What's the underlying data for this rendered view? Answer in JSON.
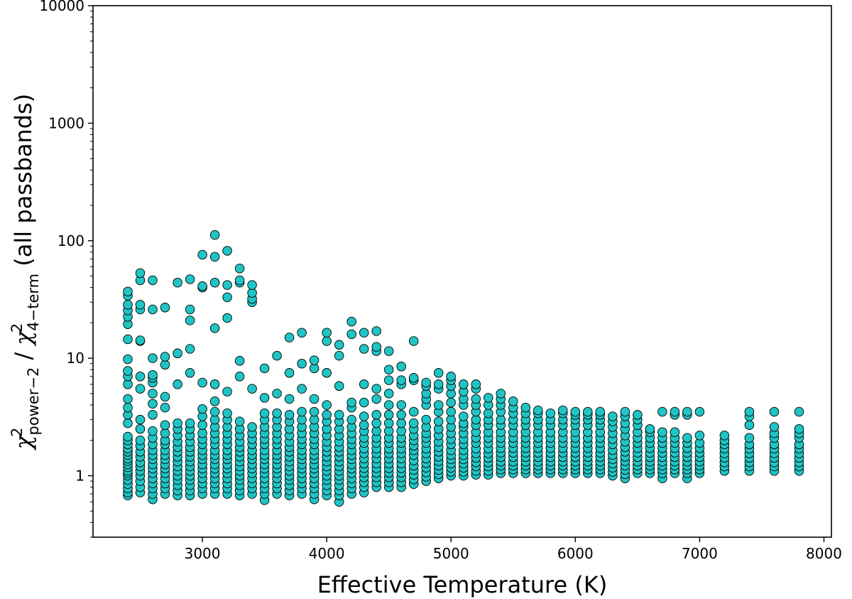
{
  "chart_data": {
    "type": "scatter",
    "title": "",
    "xlabel": "Effective Temperature (K)",
    "ylabel": {
      "symbol": "χ",
      "sup": "2",
      "num_sub": "power−2",
      "separator": " / ",
      "den_sub": "4−term",
      "suffix": " (all passbands)"
    },
    "xlim": [
      2120,
      8060
    ],
    "ylim": [
      0.3,
      10000
    ],
    "yscale": "log",
    "xticks": [
      3000,
      4000,
      5000,
      6000,
      7000,
      8000
    ],
    "xtick_labels": [
      "3000",
      "4000",
      "5000",
      "6000",
      "7000",
      "8000"
    ],
    "yticks": [
      1,
      10,
      100,
      1000,
      10000
    ],
    "ytick_labels": [
      "1",
      "10",
      "100",
      "1000",
      "10000"
    ],
    "marker_color": "#20c4c4",
    "marker_edge": "#000000",
    "series": [
      {
        "x": 2400,
        "y": [
          0.68,
          0.72,
          0.78,
          0.85,
          0.92,
          1.0,
          1.05,
          1.1,
          1.18,
          1.25,
          1.33,
          1.4,
          1.5,
          1.6,
          1.7,
          1.85,
          2.0,
          2.15,
          2.8,
          3.3,
          3.8,
          4.5,
          6.0,
          7.0,
          7.8,
          9.8,
          14.5,
          19.5,
          22.5,
          25.5,
          28.5,
          34.0,
          37.0
        ]
      },
      {
        "x": 2500,
        "y": [
          0.72,
          0.8,
          0.9,
          1.0,
          1.1,
          1.2,
          1.3,
          1.45,
          1.6,
          1.8,
          2.0,
          2.5,
          3.0,
          5.5,
          7.0,
          14.0,
          14.2,
          26.0,
          28.5,
          46.0,
          53.0
        ]
      },
      {
        "x": 2600,
        "y": [
          0.63,
          0.7,
          0.78,
          0.86,
          0.95,
          1.05,
          1.15,
          1.25,
          1.38,
          1.5,
          1.65,
          1.85,
          2.1,
          2.4,
          3.3,
          4.1,
          5.0,
          6.2,
          6.8,
          7.2,
          10.0,
          26.0,
          46.0
        ]
      },
      {
        "x": 2700,
        "y": [
          0.7,
          0.78,
          0.86,
          0.95,
          1.05,
          1.15,
          1.25,
          1.38,
          1.5,
          1.65,
          1.85,
          2.0,
          2.3,
          2.7,
          3.8,
          4.7,
          8.8,
          10.3,
          27.0
        ]
      },
      {
        "x": 2800,
        "y": [
          0.68,
          0.75,
          0.83,
          0.92,
          1.0,
          1.1,
          1.2,
          1.32,
          1.45,
          1.6,
          1.75,
          1.95,
          2.2,
          2.5,
          2.8,
          6.0,
          11.0,
          44.0
        ]
      },
      {
        "x": 2900,
        "y": [
          0.68,
          0.75,
          0.83,
          0.92,
          1.0,
          1.1,
          1.2,
          1.32,
          1.45,
          1.6,
          1.75,
          1.95,
          2.2,
          2.5,
          2.8,
          7.5,
          12.0,
          21.0,
          26.0,
          47.0
        ]
      },
      {
        "x": 3000,
        "y": [
          0.7,
          0.78,
          0.86,
          0.95,
          1.05,
          1.15,
          1.25,
          1.38,
          1.5,
          1.65,
          1.85,
          2.05,
          2.3,
          2.7,
          3.2,
          3.7,
          6.2,
          40.0,
          41.0,
          76.0
        ]
      },
      {
        "x": 3100,
        "y": [
          0.7,
          0.78,
          0.86,
          0.95,
          1.05,
          1.15,
          1.25,
          1.38,
          1.5,
          1.65,
          1.85,
          2.05,
          2.3,
          2.6,
          3.0,
          3.5,
          4.3,
          6.0,
          18.0,
          44.0,
          73.0,
          112.0
        ]
      },
      {
        "x": 3200,
        "y": [
          0.7,
          0.78,
          0.86,
          0.95,
          1.05,
          1.15,
          1.25,
          1.38,
          1.5,
          1.65,
          1.85,
          2.05,
          2.3,
          2.6,
          3.0,
          3.4,
          5.2,
          22.0,
          33.0,
          42.0,
          82.0
        ]
      },
      {
        "x": 3300,
        "y": [
          0.68,
          0.75,
          0.83,
          0.92,
          1.0,
          1.1,
          1.2,
          1.32,
          1.45,
          1.6,
          1.75,
          1.95,
          2.2,
          2.5,
          2.9,
          7.0,
          9.5,
          44.0,
          46.0,
          58.0
        ]
      },
      {
        "x": 3400,
        "y": [
          0.7,
          0.78,
          0.86,
          0.95,
          1.05,
          1.15,
          1.25,
          1.38,
          1.5,
          1.65,
          1.85,
          2.05,
          2.3,
          2.6,
          5.5,
          30.0,
          32.0,
          36.0,
          42.0
        ]
      },
      {
        "x": 3500,
        "y": [
          0.62,
          0.7,
          0.78,
          0.86,
          0.95,
          1.05,
          1.15,
          1.25,
          1.38,
          1.5,
          1.65,
          1.85,
          2.05,
          2.3,
          2.6,
          3.0,
          3.4,
          4.6,
          8.2
        ]
      },
      {
        "x": 3600,
        "y": [
          0.7,
          0.78,
          0.86,
          0.95,
          1.05,
          1.15,
          1.25,
          1.38,
          1.5,
          1.65,
          1.85,
          2.05,
          2.3,
          2.6,
          3.0,
          3.4,
          5.0,
          10.5
        ]
      },
      {
        "x": 3700,
        "y": [
          0.68,
          0.75,
          0.83,
          0.92,
          1.0,
          1.1,
          1.2,
          1.32,
          1.45,
          1.6,
          1.75,
          1.95,
          2.2,
          2.5,
          2.9,
          3.3,
          4.5,
          7.5,
          15.0
        ]
      },
      {
        "x": 3800,
        "y": [
          0.7,
          0.78,
          0.86,
          0.95,
          1.05,
          1.15,
          1.25,
          1.38,
          1.5,
          1.65,
          1.85,
          2.05,
          2.3,
          2.6,
          3.0,
          3.5,
          5.5,
          9.0,
          16.5
        ]
      },
      {
        "x": 3900,
        "y": [
          0.63,
          0.7,
          0.78,
          0.86,
          0.95,
          1.05,
          1.15,
          1.25,
          1.38,
          1.5,
          1.65,
          1.85,
          2.05,
          2.3,
          2.6,
          3.0,
          3.5,
          4.5,
          8.2,
          9.6
        ]
      },
      {
        "x": 4000,
        "y": [
          0.68,
          0.75,
          0.83,
          0.92,
          1.0,
          1.1,
          1.2,
          1.32,
          1.45,
          1.6,
          1.75,
          1.95,
          2.2,
          2.5,
          2.9,
          3.3,
          4.0,
          7.5,
          14.0,
          16.5
        ]
      },
      {
        "x": 4100,
        "y": [
          0.6,
          0.68,
          0.75,
          0.83,
          0.92,
          1.0,
          1.1,
          1.2,
          1.32,
          1.45,
          1.6,
          1.75,
          1.95,
          2.2,
          2.5,
          2.9,
          3.3,
          5.8,
          10.5,
          13.0
        ]
      },
      {
        "x": 4200,
        "y": [
          0.7,
          0.78,
          0.86,
          0.95,
          1.05,
          1.15,
          1.25,
          1.38,
          1.5,
          1.65,
          1.85,
          2.05,
          2.3,
          2.6,
          3.0,
          3.8,
          4.2,
          16.0,
          20.5
        ]
      },
      {
        "x": 4300,
        "y": [
          0.72,
          0.8,
          0.88,
          0.97,
          1.06,
          1.16,
          1.27,
          1.4,
          1.55,
          1.7,
          1.9,
          2.1,
          2.4,
          2.7,
          3.2,
          4.2,
          6.0,
          12.0,
          16.5
        ]
      },
      {
        "x": 4400,
        "y": [
          0.8,
          0.88,
          0.97,
          1.06,
          1.16,
          1.27,
          1.4,
          1.55,
          1.7,
          1.9,
          2.1,
          2.4,
          2.8,
          3.3,
          4.5,
          5.5,
          11.5,
          12.5,
          17.0
        ]
      },
      {
        "x": 4500,
        "y": [
          0.8,
          0.88,
          0.97,
          1.06,
          1.16,
          1.27,
          1.4,
          1.55,
          1.7,
          1.9,
          2.1,
          2.4,
          2.8,
          3.3,
          4.0,
          5.0,
          6.5,
          8.0,
          11.5
        ]
      },
      {
        "x": 4600,
        "y": [
          0.8,
          0.88,
          0.97,
          1.06,
          1.16,
          1.27,
          1.4,
          1.55,
          1.7,
          1.9,
          2.1,
          2.4,
          2.8,
          3.3,
          4.0,
          6.0,
          6.5,
          8.5
        ]
      },
      {
        "x": 4700,
        "y": [
          0.85,
          0.93,
          1.02,
          1.12,
          1.22,
          1.35,
          1.5,
          1.65,
          1.8,
          2.0,
          2.2,
          2.5,
          2.8,
          3.5,
          6.5,
          6.8,
          14.0
        ]
      },
      {
        "x": 4800,
        "y": [
          0.9,
          0.98,
          1.07,
          1.17,
          1.28,
          1.4,
          1.55,
          1.7,
          1.9,
          2.1,
          2.3,
          2.6,
          3.0,
          4.0,
          4.5,
          5.0,
          5.8,
          6.2
        ]
      },
      {
        "x": 4900,
        "y": [
          0.95,
          1.03,
          1.12,
          1.22,
          1.33,
          1.45,
          1.6,
          1.75,
          1.95,
          2.2,
          2.5,
          2.9,
          3.5,
          4.0,
          5.5,
          6.0,
          7.5
        ]
      },
      {
        "x": 5000,
        "y": [
          1.0,
          1.08,
          1.17,
          1.27,
          1.38,
          1.5,
          1.65,
          1.85,
          2.05,
          2.3,
          2.6,
          3.0,
          3.5,
          4.2,
          5.0,
          5.8,
          6.5,
          7.0
        ]
      },
      {
        "x": 5100,
        "y": [
          1.0,
          1.08,
          1.17,
          1.27,
          1.38,
          1.5,
          1.65,
          1.85,
          2.05,
          2.3,
          2.6,
          2.8,
          3.2,
          4.0,
          4.5,
          5.2,
          6.0
        ]
      },
      {
        "x": 5200,
        "y": [
          1.02,
          1.1,
          1.2,
          1.3,
          1.42,
          1.55,
          1.7,
          1.9,
          2.1,
          2.35,
          2.7,
          3.0,
          3.5,
          4.0,
          4.5,
          5.5,
          6.0
        ]
      },
      {
        "x": 5300,
        "y": [
          1.02,
          1.1,
          1.2,
          1.3,
          1.42,
          1.55,
          1.7,
          1.9,
          2.1,
          2.35,
          2.7,
          3.0,
          3.4,
          4.0,
          4.6
        ]
      },
      {
        "x": 5400,
        "y": [
          1.05,
          1.13,
          1.22,
          1.32,
          1.44,
          1.57,
          1.72,
          1.9,
          2.1,
          2.35,
          2.7,
          3.0,
          3.5,
          4.0,
          4.5,
          5.0
        ]
      },
      {
        "x": 5500,
        "y": [
          1.05,
          1.13,
          1.22,
          1.32,
          1.44,
          1.57,
          1.72,
          1.9,
          2.1,
          2.35,
          2.7,
          3.0,
          3.4,
          3.8,
          4.3
        ]
      },
      {
        "x": 5600,
        "y": [
          1.05,
          1.13,
          1.22,
          1.32,
          1.44,
          1.57,
          1.72,
          1.9,
          2.1,
          2.35,
          2.7,
          3.0,
          3.4,
          3.8
        ]
      },
      {
        "x": 5700,
        "y": [
          1.05,
          1.13,
          1.22,
          1.32,
          1.44,
          1.57,
          1.72,
          1.9,
          2.1,
          2.35,
          2.7,
          3.0,
          3.4,
          3.6
        ]
      },
      {
        "x": 5800,
        "y": [
          1.05,
          1.13,
          1.22,
          1.32,
          1.44,
          1.57,
          1.72,
          1.9,
          2.1,
          2.35,
          2.7,
          3.0,
          3.4
        ]
      },
      {
        "x": 5900,
        "y": [
          1.05,
          1.13,
          1.22,
          1.32,
          1.44,
          1.57,
          1.72,
          1.9,
          2.1,
          2.35,
          2.7,
          3.0,
          3.4,
          3.6
        ]
      },
      {
        "x": 6000,
        "y": [
          1.05,
          1.13,
          1.22,
          1.32,
          1.44,
          1.57,
          1.72,
          1.9,
          2.1,
          2.35,
          2.7,
          3.0,
          3.3,
          3.5
        ]
      },
      {
        "x": 6100,
        "y": [
          1.05,
          1.13,
          1.22,
          1.32,
          1.44,
          1.57,
          1.72,
          1.9,
          2.1,
          2.35,
          2.7,
          3.0,
          3.3,
          3.5
        ]
      },
      {
        "x": 6200,
        "y": [
          1.05,
          1.13,
          1.22,
          1.32,
          1.44,
          1.57,
          1.72,
          1.9,
          2.1,
          2.35,
          2.7,
          3.0,
          3.3,
          3.5
        ]
      },
      {
        "x": 6300,
        "y": [
          1.0,
          1.08,
          1.17,
          1.27,
          1.38,
          1.5,
          1.65,
          1.85,
          2.05,
          2.3,
          2.6,
          2.9,
          3.2
        ]
      },
      {
        "x": 6400,
        "y": [
          0.95,
          1.03,
          1.12,
          1.22,
          1.33,
          1.45,
          1.6,
          1.75,
          1.95,
          2.2,
          2.5,
          2.8,
          3.2,
          3.5
        ]
      },
      {
        "x": 6500,
        "y": [
          1.05,
          1.13,
          1.22,
          1.32,
          1.44,
          1.57,
          1.72,
          1.9,
          2.1,
          2.35,
          2.7,
          3.0,
          3.3
        ]
      },
      {
        "x": 6600,
        "y": [
          1.05,
          1.13,
          1.22,
          1.32,
          1.44,
          1.57,
          1.72,
          1.9,
          2.1,
          2.35,
          2.5
        ]
      },
      {
        "x": 6700,
        "y": [
          0.95,
          1.05,
          1.13,
          1.22,
          1.32,
          1.44,
          1.57,
          1.72,
          1.9,
          2.1,
          2.35,
          3.5
        ]
      },
      {
        "x": 6800,
        "y": [
          1.05,
          1.13,
          1.22,
          1.32,
          1.44,
          1.57,
          1.72,
          1.9,
          2.1,
          2.35,
          3.3,
          3.5
        ]
      },
      {
        "x": 6900,
        "y": [
          0.95,
          1.05,
          1.13,
          1.22,
          1.32,
          1.44,
          1.57,
          1.72,
          1.9,
          2.1,
          3.3,
          3.5
        ]
      },
      {
        "x": 7000,
        "y": [
          1.05,
          1.13,
          1.22,
          1.32,
          1.44,
          1.57,
          1.72,
          1.9,
          2.2,
          3.5
        ]
      },
      {
        "x": 7200,
        "y": [
          1.1,
          1.2,
          1.3,
          1.42,
          1.55,
          1.7,
          1.85,
          2.0,
          2.2
        ]
      },
      {
        "x": 7400,
        "y": [
          1.1,
          1.2,
          1.3,
          1.42,
          1.55,
          1.7,
          1.85,
          2.1,
          2.7,
          3.2,
          3.5
        ]
      },
      {
        "x": 7600,
        "y": [
          1.1,
          1.2,
          1.3,
          1.42,
          1.55,
          1.7,
          1.85,
          2.1,
          2.3,
          2.6,
          3.5
        ]
      },
      {
        "x": 7800,
        "y": [
          1.1,
          1.2,
          1.3,
          1.42,
          1.55,
          1.7,
          1.85,
          2.1,
          2.3,
          2.5,
          3.5
        ]
      }
    ]
  }
}
